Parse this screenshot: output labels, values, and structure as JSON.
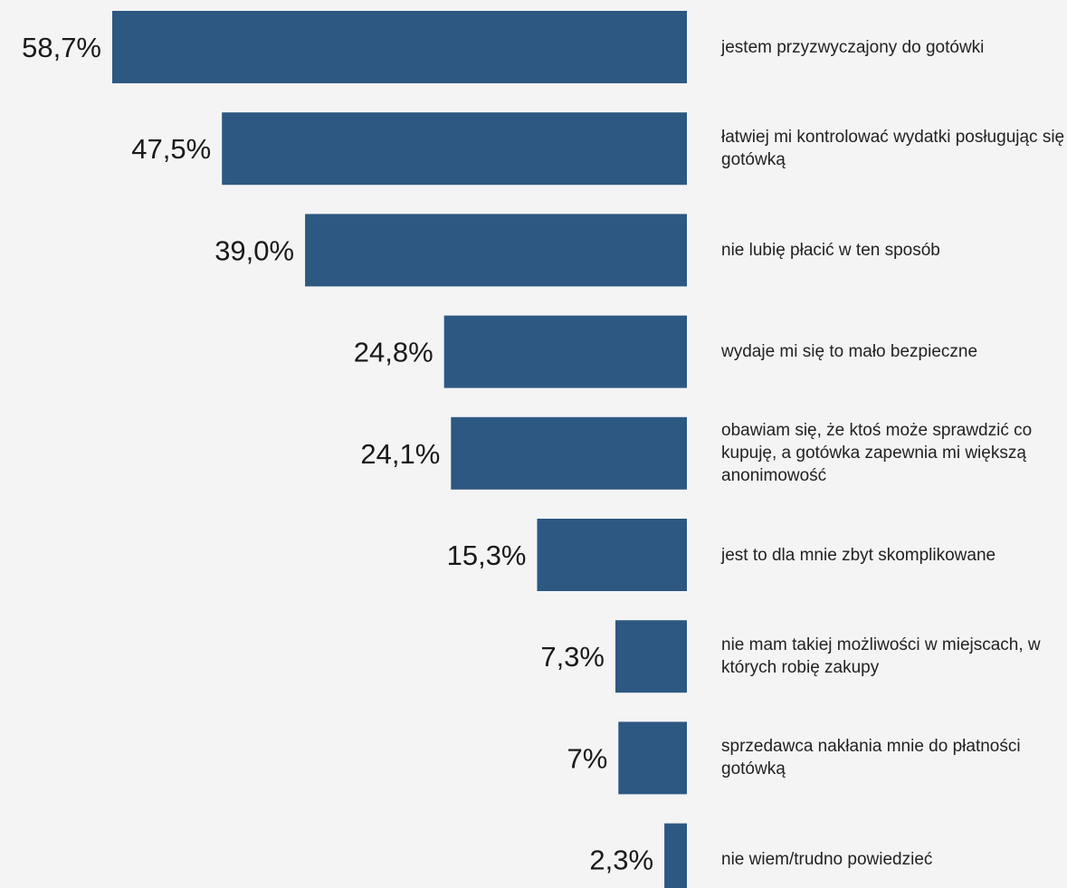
{
  "chart_data": {
    "type": "bar",
    "orientation": "horizontal",
    "categories": [
      "jestem przyzwyczajony do gotówki",
      "łatwiej mi kontrolować wydatki posługując się gotówką",
      "nie lubię płacić w ten sposób",
      "wydaje mi się to mało bezpieczne",
      "obawiam się, że ktoś może sprawdzić co kupuję, a gotówka zapewnia mi większą anonimowość",
      "jest to dla mnie zbyt skomplikowane",
      "nie mam takiej możliwości w miejscach, w których robię zakupy",
      "sprzedawca nakłania mnie do płatności gotówką",
      "nie wiem/trudno powiedzieć"
    ],
    "values": [
      58.7,
      47.5,
      39.0,
      24.8,
      24.1,
      15.3,
      7.3,
      7,
      2.3
    ],
    "value_labels": [
      "58,7%",
      "47,5%",
      "39,0%",
      "24,8%",
      "24,1%",
      "15,3%",
      "7,3%",
      "7%",
      "2,3%"
    ],
    "unit": "%",
    "bar_color": "#2d5882",
    "background_color": "#f4f4f4",
    "grid": false,
    "legend": "none"
  }
}
